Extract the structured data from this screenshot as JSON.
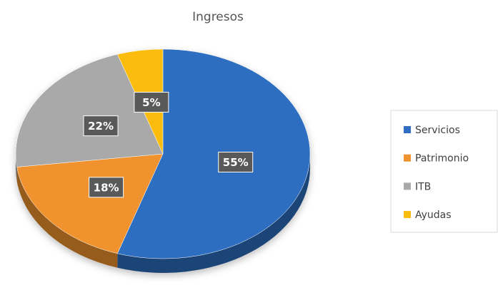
{
  "chart_data": {
    "type": "pie",
    "title": "Ingresos",
    "categories": [
      "Servicios",
      "Patrimonio",
      "ITB",
      "Ayudas"
    ],
    "values": [
      55,
      18,
      22,
      5
    ],
    "value_labels": [
      "55%",
      "18%",
      "22%",
      "5%"
    ],
    "colors": [
      "#2e6ec0",
      "#f0922e",
      "#a9a9a9",
      "#fbbc0e"
    ],
    "legend": "right"
  }
}
